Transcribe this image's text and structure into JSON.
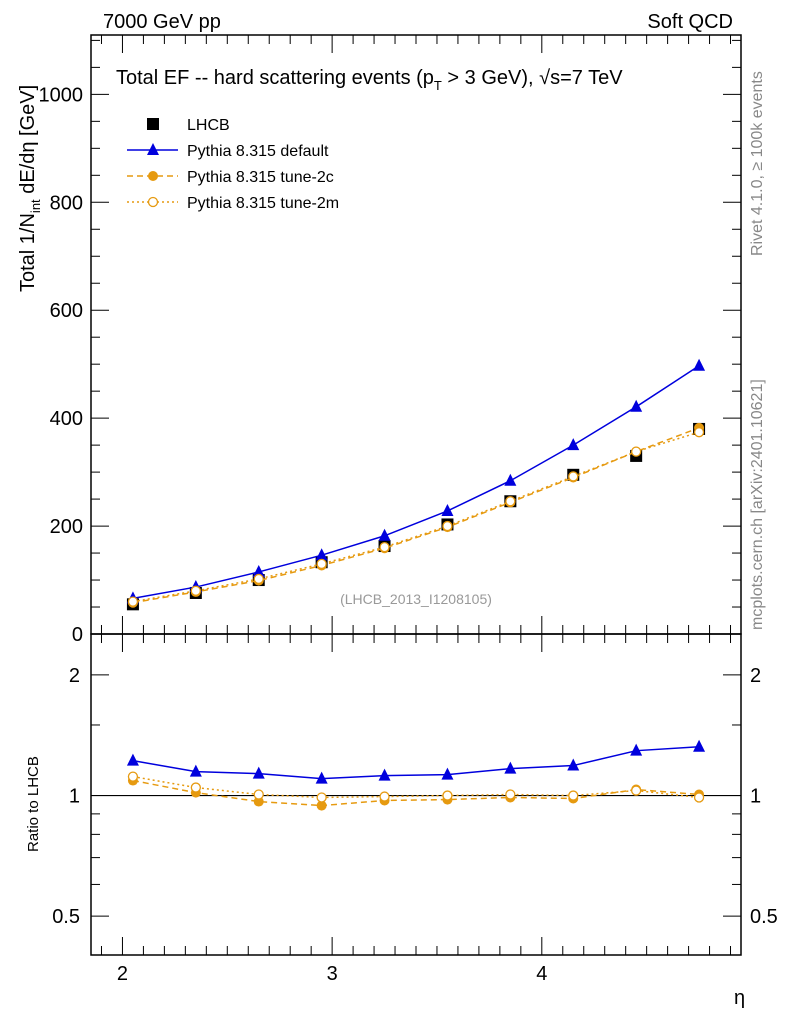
{
  "header": {
    "left": "7000 GeV pp",
    "right": "Soft QCD"
  },
  "side": {
    "rivet": "Rivet 4.1.0, ≥ 100k events",
    "mcplots": "mcplots.cern.ch [arXiv:2401.10621]"
  },
  "chart_data": [
    {
      "type": "line",
      "title": "Total EF -- hard scattering events (pT > 3 GeV), √s=7 TeV",
      "title_parts": {
        "a": "Total EF -- hard scattering events (p",
        "sub": "T",
        "b": " > 3 GeV), ",
        "sqrt": "√s",
        "c": "=7 TeV"
      },
      "ylabel": "Total 1/N_int dE/dη [GeV]",
      "ylabel_parts": {
        "a": "Total 1/N",
        "sub": "int",
        "b": " dE/dη [GeV]"
      },
      "xlabel": "",
      "xlim": [
        1.85,
        4.95
      ],
      "ylim": [
        0,
        1110
      ],
      "yticks": [
        0,
        200,
        400,
        600,
        800,
        1000
      ],
      "watermark": "(LHCB_2013_I1208105)",
      "legend_position": "top-left",
      "x": [
        2.05,
        2.35,
        2.65,
        2.95,
        3.25,
        3.55,
        3.85,
        4.15,
        4.45,
        4.75
      ],
      "series": [
        {
          "name": "LHCB",
          "color": "#000000",
          "marker": "square",
          "values": [
            55,
            76,
            100,
            133,
            163,
            203,
            246,
            295,
            330,
            380
          ]
        },
        {
          "name": "Pythia 8.315 default",
          "color": "#0000dd",
          "marker": "triangle",
          "line": "solid",
          "values": [
            66,
            87,
            115,
            146,
            182,
            228,
            284,
            350,
            421,
            497
          ]
        },
        {
          "name": "Pythia 8.315 tune-2c",
          "color": "#e69a10",
          "marker": "circle",
          "line": "dashed",
          "values": [
            58,
            78,
            99,
            127,
            159,
            198,
            244,
            290,
            338,
            382
          ]
        },
        {
          "name": "Pythia 8.315 tune-2m",
          "color": "#e69a10",
          "marker": "open-circle",
          "line": "dotted",
          "values": [
            60,
            80,
            102,
            130,
            161,
            200,
            246,
            292,
            338,
            374
          ]
        }
      ]
    },
    {
      "type": "line",
      "ylabel": "Ratio to LHCB",
      "xlabel": "η",
      "xlim": [
        1.85,
        4.95
      ],
      "ylim": [
        0.4,
        2.53
      ],
      "yscale": "log",
      "yticks": [
        0.5,
        1,
        2
      ],
      "ytick_labels": [
        "0.5",
        "1",
        "2"
      ],
      "xticks": [
        2,
        3,
        4
      ],
      "xtick_labels": [
        "2",
        "3",
        "4"
      ],
      "x": [
        2.05,
        2.35,
        2.65,
        2.95,
        3.25,
        3.55,
        3.85,
        4.15,
        4.45,
        4.75
      ],
      "series": [
        {
          "name": "Pythia 8.315 default",
          "color": "#0000dd",
          "marker": "triangle",
          "line": "solid",
          "values": [
            1.222,
            1.147,
            1.134,
            1.102,
            1.121,
            1.128,
            1.167,
            1.188,
            1.294,
            1.324
          ]
        },
        {
          "name": "Pythia 8.315 tune-2c",
          "color": "#e69a10",
          "marker": "circle",
          "line": "dashed",
          "values": [
            1.09,
            1.017,
            0.966,
            0.944,
            0.972,
            0.977,
            0.989,
            0.983,
            1.035,
            1.006
          ]
        },
        {
          "name": "Pythia 8.315 tune-2m",
          "color": "#e69a10",
          "marker": "open-circle",
          "line": "dotted",
          "values": [
            1.115,
            1.047,
            1.006,
            0.989,
            0.994,
            1.0,
            1.006,
            1.0,
            1.029,
            0.989
          ]
        }
      ]
    }
  ]
}
